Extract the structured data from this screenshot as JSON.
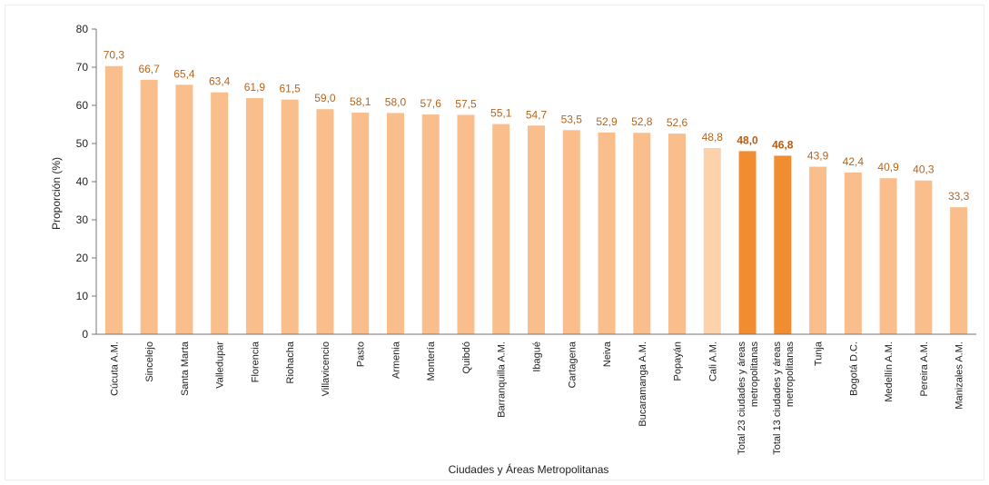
{
  "chart_data": {
    "type": "bar",
    "title": "",
    "xlabel": "Ciudades y  Áreas Metropolitanas",
    "ylabel": "Proporción (%)",
    "ylim": [
      0,
      80
    ],
    "yticks": [
      0,
      10,
      20,
      30,
      40,
      50,
      60,
      70,
      80
    ],
    "grid": false,
    "colors": {
      "default": "#f9be8b",
      "light": "#fbd2aa",
      "highlight": "#f28c30",
      "value_text": "#b5651d"
    },
    "categories": [
      "Cúcuta A.M.",
      "Sincelejo",
      "Santa Marta",
      "Valledupar",
      "Florencia",
      "Riohacha",
      "Villavicencio",
      "Pasto",
      "Armenia",
      "Montería",
      "Quibdó",
      "Barranquilla A.M.",
      "Ibagué",
      "Cartagena",
      "Neiva",
      "Bucaramanga A.M.",
      "Popayán",
      "Cali A.M.",
      "Total 23 ciudades y áreas metropolitanas",
      "Total 13 ciudades y áreas metropolitanas",
      "Tunja",
      "Bogotá D.C.",
      "Medellín A.M.",
      "Pereira A.M.",
      "Manizales A.M."
    ],
    "category_lines": [
      [
        "Cúcuta A.M."
      ],
      [
        "Sincelejo"
      ],
      [
        "Santa Marta"
      ],
      [
        "Valledupar"
      ],
      [
        "Florencia"
      ],
      [
        "Riohacha"
      ],
      [
        "Villavicencio"
      ],
      [
        "Pasto"
      ],
      [
        "Armenia"
      ],
      [
        "Montería"
      ],
      [
        "Quibdó"
      ],
      [
        "Barranquilla A.M."
      ],
      [
        "Ibagué"
      ],
      [
        "Cartagena"
      ],
      [
        "Neiva"
      ],
      [
        "Bucaramanga A.M."
      ],
      [
        "Popayán"
      ],
      [
        "Cali A.M."
      ],
      [
        "Total 23 ciudades y áreas",
        "metropolitanas"
      ],
      [
        "Total 13 ciudades y áreas",
        "metropolitanas"
      ],
      [
        "Tunja"
      ],
      [
        "Bogotá D.C."
      ],
      [
        "Medellín A.M."
      ],
      [
        "Pereira A.M."
      ],
      [
        "Manizales A.M."
      ]
    ],
    "values": [
      70.3,
      66.7,
      65.4,
      63.4,
      61.9,
      61.5,
      59.0,
      58.1,
      58.0,
      57.6,
      57.5,
      55.1,
      54.7,
      53.5,
      52.9,
      52.8,
      52.6,
      48.8,
      48.0,
      46.8,
      43.9,
      42.4,
      40.9,
      40.3,
      33.3
    ],
    "value_labels": [
      "70,3",
      "66,7",
      "65,4",
      "63,4",
      "61,9",
      "61,5",
      "59,0",
      "58,1",
      "58,0",
      "57,6",
      "57,5",
      "55,1",
      "54,7",
      "53,5",
      "52,9",
      "52,8",
      "52,6",
      "48,8",
      "48,0",
      "46,8",
      "43,9",
      "42,4",
      "40,9",
      "40,3",
      "33,3"
    ],
    "bar_styles": [
      "default",
      "default",
      "default",
      "default",
      "default",
      "default",
      "default",
      "default",
      "default",
      "default",
      "default",
      "default",
      "default",
      "default",
      "default",
      "default",
      "default",
      "light",
      "highlight",
      "highlight",
      "default",
      "default",
      "default",
      "default",
      "default"
    ],
    "bold_labels": [
      false,
      false,
      false,
      false,
      false,
      false,
      false,
      false,
      false,
      false,
      false,
      false,
      false,
      false,
      false,
      false,
      false,
      false,
      true,
      true,
      false,
      false,
      false,
      false,
      false
    ]
  }
}
